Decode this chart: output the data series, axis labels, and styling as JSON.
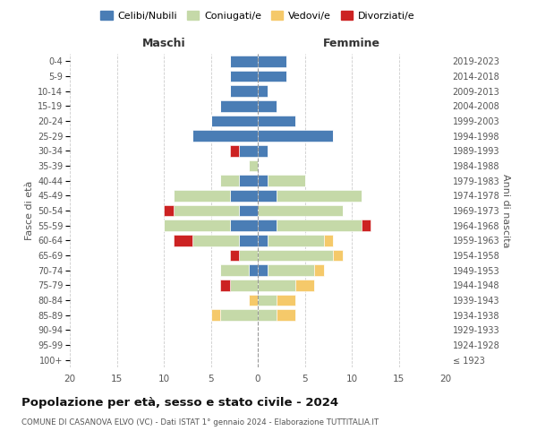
{
  "age_groups": [
    "100+",
    "95-99",
    "90-94",
    "85-89",
    "80-84",
    "75-79",
    "70-74",
    "65-69",
    "60-64",
    "55-59",
    "50-54",
    "45-49",
    "40-44",
    "35-39",
    "30-34",
    "25-29",
    "20-24",
    "15-19",
    "10-14",
    "5-9",
    "0-4"
  ],
  "birth_years": [
    "≤ 1923",
    "1924-1928",
    "1929-1933",
    "1934-1938",
    "1939-1943",
    "1944-1948",
    "1949-1953",
    "1954-1958",
    "1959-1963",
    "1964-1968",
    "1969-1973",
    "1974-1978",
    "1979-1983",
    "1984-1988",
    "1989-1993",
    "1994-1998",
    "1999-2003",
    "2004-2008",
    "2009-2013",
    "2014-2018",
    "2019-2023"
  ],
  "colors": {
    "celibe": "#4a7db5",
    "coniugato": "#c5d9a8",
    "vedovo": "#f5c96a",
    "divorziato": "#cc2222"
  },
  "males": {
    "celibe": [
      0,
      0,
      0,
      0,
      0,
      0,
      1,
      0,
      2,
      3,
      2,
      3,
      2,
      0,
      2,
      7,
      5,
      4,
      3,
      3,
      3
    ],
    "coniugato": [
      0,
      0,
      0,
      4,
      0,
      3,
      3,
      2,
      5,
      7,
      7,
      6,
      2,
      1,
      0,
      0,
      0,
      0,
      0,
      0,
      0
    ],
    "vedovo": [
      0,
      0,
      0,
      1,
      1,
      0,
      0,
      0,
      0,
      0,
      0,
      0,
      0,
      0,
      0,
      0,
      0,
      0,
      0,
      0,
      0
    ],
    "divorziato": [
      0,
      0,
      0,
      0,
      0,
      1,
      0,
      1,
      2,
      0,
      1,
      0,
      0,
      0,
      1,
      0,
      0,
      0,
      0,
      0,
      0
    ]
  },
  "females": {
    "celibe": [
      0,
      0,
      0,
      0,
      0,
      0,
      1,
      0,
      1,
      2,
      0,
      2,
      1,
      0,
      1,
      8,
      4,
      2,
      1,
      3,
      3
    ],
    "coniugato": [
      0,
      0,
      0,
      2,
      2,
      4,
      5,
      8,
      6,
      9,
      9,
      9,
      4,
      0,
      0,
      0,
      0,
      0,
      0,
      0,
      0
    ],
    "vedovo": [
      0,
      0,
      0,
      2,
      2,
      2,
      1,
      1,
      1,
      0,
      0,
      0,
      0,
      0,
      0,
      0,
      0,
      0,
      0,
      0,
      0
    ],
    "divorziato": [
      0,
      0,
      0,
      0,
      0,
      0,
      0,
      0,
      0,
      1,
      0,
      0,
      0,
      0,
      0,
      0,
      0,
      0,
      0,
      0,
      0
    ]
  },
  "title": "Popolazione per età, sesso e stato civile - 2024",
  "subtitle": "COMUNE DI CASANOVA ELVO (VC) - Dati ISTAT 1° gennaio 2024 - Elaborazione TUTTITALIA.IT",
  "xlabel_left": "Maschi",
  "xlabel_right": "Femmine",
  "ylabel_left": "Fasce di età",
  "ylabel_right": "Anni di nascita",
  "xlim": 20,
  "legend_labels": [
    "Celibi/Nubili",
    "Coniugati/e",
    "Vedovi/e",
    "Divorziati/e"
  ]
}
